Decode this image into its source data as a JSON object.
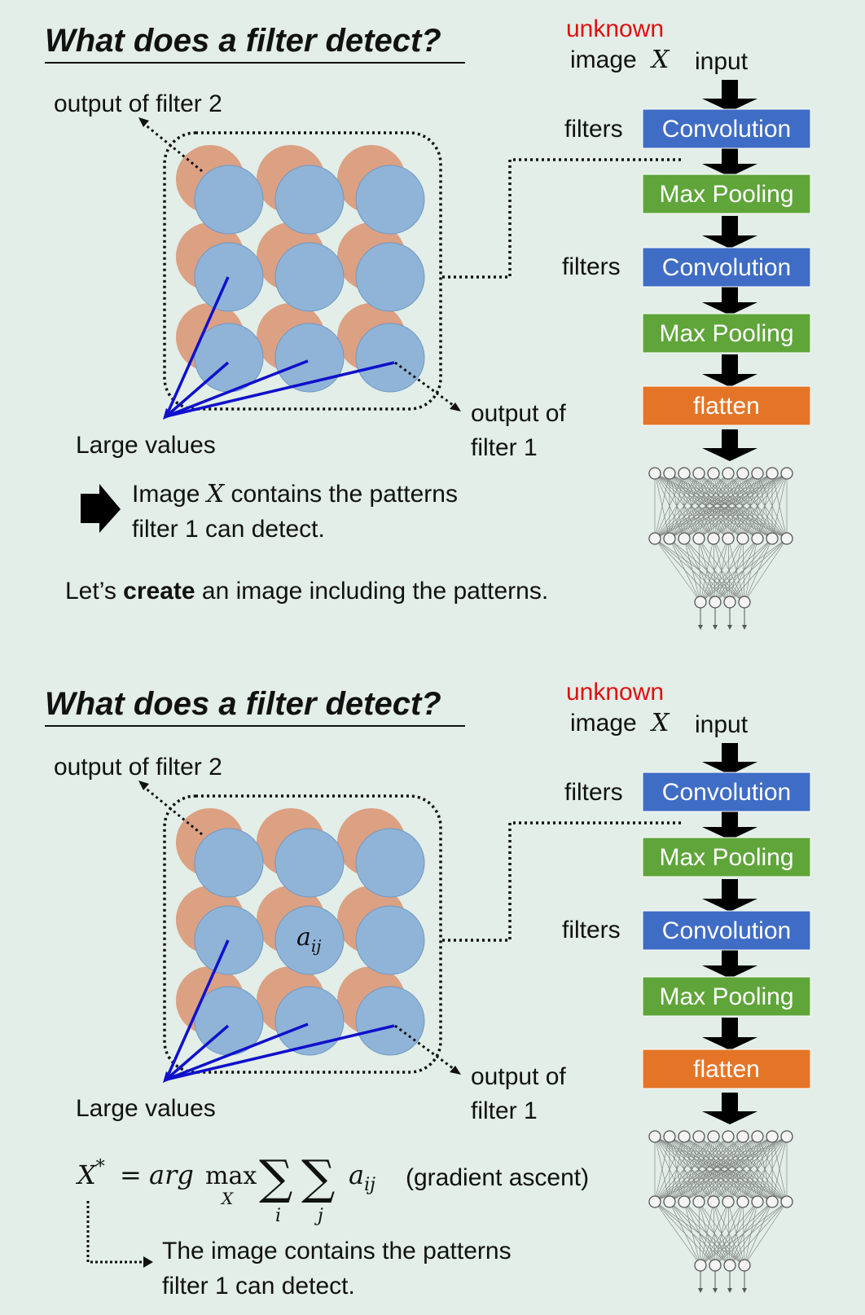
{
  "panels": [
    {
      "title": "What does a filter detect?",
      "unknown_label": "unknown",
      "image_label": "image",
      "image_var": "X",
      "input_label": "input",
      "filters_label_1": "filters",
      "filters_label_2": "filters",
      "blocks": [
        {
          "label": "Convolution",
          "color": "#3f6cc4"
        },
        {
          "label": "Max Pooling",
          "color": "#5fa53a"
        },
        {
          "label": "Convolution",
          "color": "#3f6cc4"
        },
        {
          "label": "Max Pooling",
          "color": "#5fa53a"
        },
        {
          "label": "flatten",
          "color": "#e47527"
        }
      ],
      "filter2_label": "output of filter 2",
      "filter1_label_line1": "output of",
      "filter1_label_line2": "filter 1",
      "large_values_label": "Large values",
      "statement_pre": "Image",
      "statement_var": "X",
      "statement_post": "contains the patterns",
      "statement_line2": "filter 1 can detect.",
      "create_pre": "Let’s",
      "create_bold": "create",
      "create_post": "an image including the patterns."
    },
    {
      "title": "What does a filter detect?",
      "unknown_label": "unknown",
      "image_label": "image",
      "image_var": "X",
      "input_label": "input",
      "filters_label_1": "filters",
      "filters_label_2": "filters",
      "blocks": [
        {
          "label": "Convolution",
          "color": "#3f6cc4"
        },
        {
          "label": "Max Pooling",
          "color": "#5fa53a"
        },
        {
          "label": "Convolution",
          "color": "#3f6cc4"
        },
        {
          "label": "Max Pooling",
          "color": "#5fa53a"
        },
        {
          "label": "flatten",
          "color": "#e47527"
        }
      ],
      "filter2_label": "output of filter 2",
      "filter1_label_line1": "output of",
      "filter1_label_line2": "filter 1",
      "large_values_label": "Large values",
      "aij_main": "a",
      "aij_sub": "ij",
      "formula_lhs": "X",
      "formula_star": "*",
      "formula_eq": "=",
      "formula_arg": "arg",
      "formula_max": "max",
      "formula_max_sub": "X",
      "formula_sum": "∑",
      "formula_sum_i": "i",
      "formula_sum_j": "j",
      "formula_term": "a",
      "formula_term_sub": "ij",
      "formula_note": "(gradient ascent)",
      "conclusion_line1": "The image contains the patterns",
      "conclusion_line2": "filter 1 can detect."
    }
  ],
  "colors": {
    "background": "#e2eee7",
    "circle_orange": "#dca083",
    "circle_blue": "#8fb4d8",
    "unknown_red": "#dd1111",
    "pointer_blue": "#1010cc"
  }
}
